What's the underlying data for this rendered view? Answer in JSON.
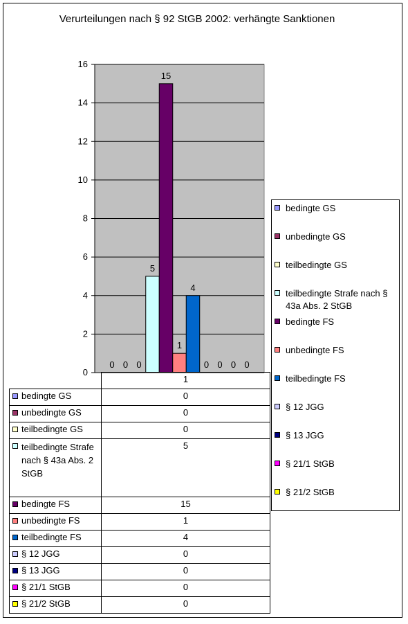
{
  "chart_data": {
    "type": "bar",
    "title": "Verurteilungen nach § 92 StGB 2002: verhängte Sanktionen",
    "categories": [
      "1"
    ],
    "ylim": [
      0,
      16
    ],
    "yticks": [
      "0",
      "2",
      "4",
      "6",
      "8",
      "10",
      "12",
      "14",
      "16"
    ],
    "grid": true,
    "legend_position": "right",
    "plot_background": "#C0C0C0",
    "series": [
      {
        "name": "bedingte GS",
        "values": [
          0
        ],
        "color": "#9999FF",
        "table_label": "bedingte GS"
      },
      {
        "name": "unbedingte GS",
        "values": [
          0
        ],
        "color": "#993366",
        "table_label": "unbedingte GS"
      },
      {
        "name": "teilbedingte GS",
        "values": [
          0
        ],
        "color": "#FFFFCC",
        "table_label": "teilbedingte GS"
      },
      {
        "name": "teilbedingte Strafe nach § 43a Abs. 2 StGB",
        "values": [
          5
        ],
        "color": "#CCFFFF",
        "table_label": "teilbedingte Strafe nach § 43a Abs. 2 StGB"
      },
      {
        "name": "bedingte FS",
        "values": [
          15
        ],
        "color": "#660066",
        "table_label": "bedingte FS"
      },
      {
        "name": "unbedingte FS",
        "values": [
          1
        ],
        "color": "#FF8080",
        "table_label": "unbedingte FS"
      },
      {
        "name": "teilbedingte FS",
        "values": [
          4
        ],
        "color": "#0066CC",
        "table_label": "teilbedingte FS"
      },
      {
        "name": "§ 12 JGG",
        "values": [
          0
        ],
        "color": "#CCCCFF",
        "table_label": "§ 12 JGG"
      },
      {
        "name": "§ 13 JGG",
        "values": [
          0
        ],
        "color": "#000080",
        "table_label": "§ 13 JGG"
      },
      {
        "name": "§ 21/1 StGB",
        "values": [
          0
        ],
        "color": "#FF00FF",
        "table_label": "§ 21/1 StGB"
      },
      {
        "name": "§ 21/2 StGB",
        "values": [
          0
        ],
        "color": "#FFFF00",
        "table_label": "§ 21/2 StGB"
      }
    ]
  }
}
